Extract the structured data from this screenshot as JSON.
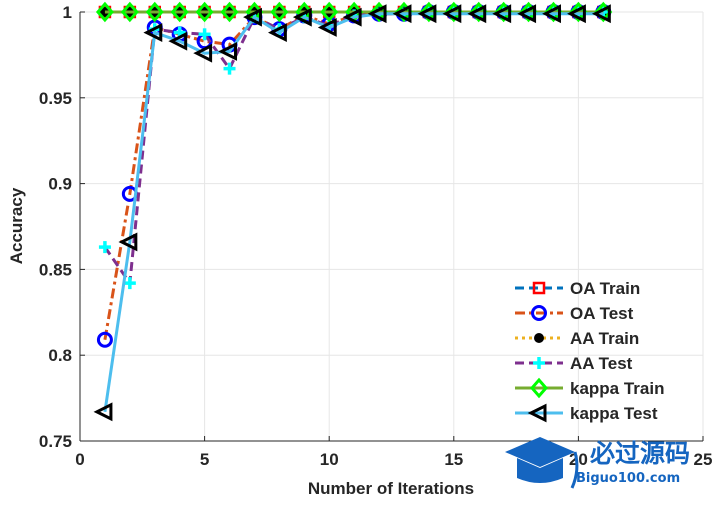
{
  "chart_data": {
    "type": "line",
    "title": "",
    "xlabel": "Number of Iterations",
    "ylabel": "Accuracy",
    "xlim": [
      0,
      25
    ],
    "ylim": [
      0.75,
      1
    ],
    "xticks": [
      0,
      5,
      10,
      15,
      20,
      25
    ],
    "xtick_labels": [
      "0",
      "5",
      "10",
      "15",
      "20",
      "25"
    ],
    "yticks": [
      0.75,
      0.8,
      0.85,
      0.9,
      0.95,
      1
    ],
    "ytick_labels": [
      "0.75",
      "0.8",
      "0.85",
      "0.9",
      "0.95",
      "1"
    ],
    "grid": true,
    "legend_position": "bottom-right",
    "x": [
      1,
      2,
      3,
      4,
      5,
      6,
      7,
      8,
      9,
      10,
      11,
      12,
      13,
      14,
      15,
      16,
      17,
      18,
      19,
      20,
      21
    ],
    "series": [
      {
        "name": "OA Train",
        "line_color": "#0072BD",
        "line_style": "dashed",
        "marker": "square",
        "marker_color": "#FF0000",
        "values": [
          1,
          1,
          1,
          1,
          1,
          1,
          1,
          1,
          1,
          1,
          1,
          1,
          1,
          1,
          1,
          1,
          1,
          1,
          1,
          1,
          1
        ]
      },
      {
        "name": "OA Test",
        "line_color": "#D95319",
        "line_style": "dashdot",
        "marker": "circle",
        "marker_color": "#0000FF",
        "values": [
          0.809,
          0.894,
          0.991,
          0.987,
          0.983,
          0.981,
          0.997,
          0.99,
          0.998,
          0.993,
          0.998,
          0.999,
          0.999,
          1,
          1,
          1,
          1,
          1,
          1,
          1,
          1
        ]
      },
      {
        "name": "AA Train",
        "line_color": "#EDB120",
        "line_style": "dotted",
        "marker": "dot",
        "marker_color": "#000000",
        "values": [
          1,
          1,
          1,
          1,
          1,
          1,
          1,
          1,
          1,
          1,
          1,
          1,
          1,
          1,
          1,
          1,
          1,
          1,
          1,
          1,
          1
        ]
      },
      {
        "name": "AA Test",
        "line_color": "#7E2F8E",
        "line_style": "dashed",
        "marker": "plus",
        "marker_color": "#00FFFF",
        "values": [
          0.863,
          0.842,
          0.99,
          0.988,
          0.987,
          0.967,
          0.997,
          0.99,
          0.997,
          0.992,
          0.998,
          0.999,
          0.999,
          1,
          1,
          1,
          1,
          1,
          1,
          1,
          1
        ]
      },
      {
        "name": "kappa Train",
        "line_color": "#77AC30",
        "line_style": "solid",
        "marker": "diamond",
        "marker_color": "#00FF00",
        "values": [
          1,
          1,
          1,
          1,
          1,
          1,
          1,
          1,
          1,
          1,
          1,
          1,
          1,
          1,
          1,
          1,
          1,
          1,
          1,
          1,
          1
        ]
      },
      {
        "name": "kappa Test",
        "line_color": "#4DBEEE",
        "line_style": "solid",
        "marker": "triangle-left",
        "marker_color": "#000000",
        "values": [
          0.767,
          0.866,
          0.988,
          0.983,
          0.976,
          0.977,
          0.997,
          0.988,
          0.997,
          0.991,
          0.997,
          0.999,
          0.999,
          0.999,
          0.999,
          0.999,
          0.999,
          0.999,
          0.999,
          0.999,
          0.999
        ]
      }
    ]
  },
  "watermark": {
    "title": "必过源码",
    "subtitle": "Biguo100.com",
    "icon": "graduation-cap-icon",
    "color": "#1565C0"
  }
}
